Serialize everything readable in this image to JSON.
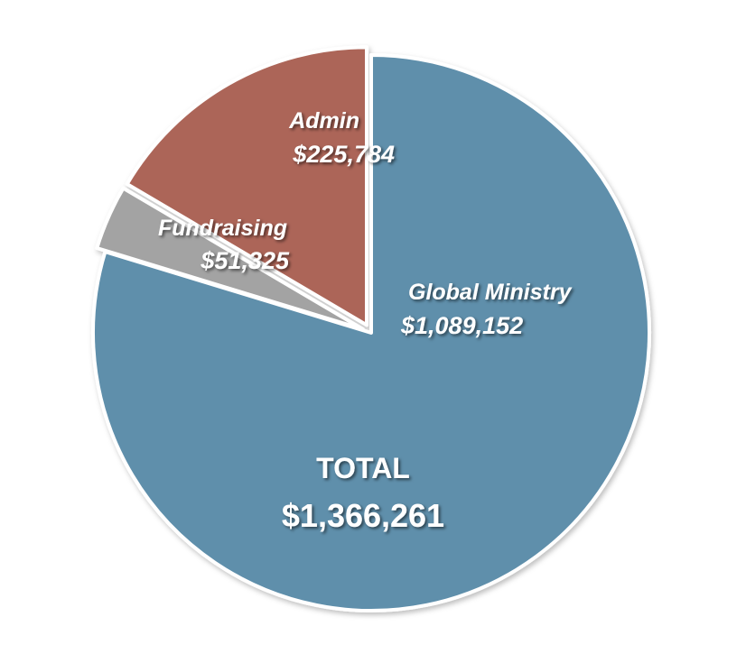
{
  "chart_data": {
    "type": "pie",
    "slices": [
      {
        "label": "Global Ministry",
        "value_text": "$1,089,152",
        "value": 1089152,
        "color": "#5f8fab"
      },
      {
        "label": "Fundraising",
        "value_text": "$51,325",
        "value": 51325,
        "color": "#a3a3a3"
      },
      {
        "label": "Admin",
        "value_text": "$225,784",
        "value": 225784,
        "color": "#ac6558"
      }
    ],
    "total": {
      "label": "TOTAL",
      "value_text": "$1,366,261",
      "value": 1366261
    },
    "exploded_slices": [
      "Fundraising",
      "Admin"
    ],
    "start": "top",
    "direction": "clockwise"
  }
}
